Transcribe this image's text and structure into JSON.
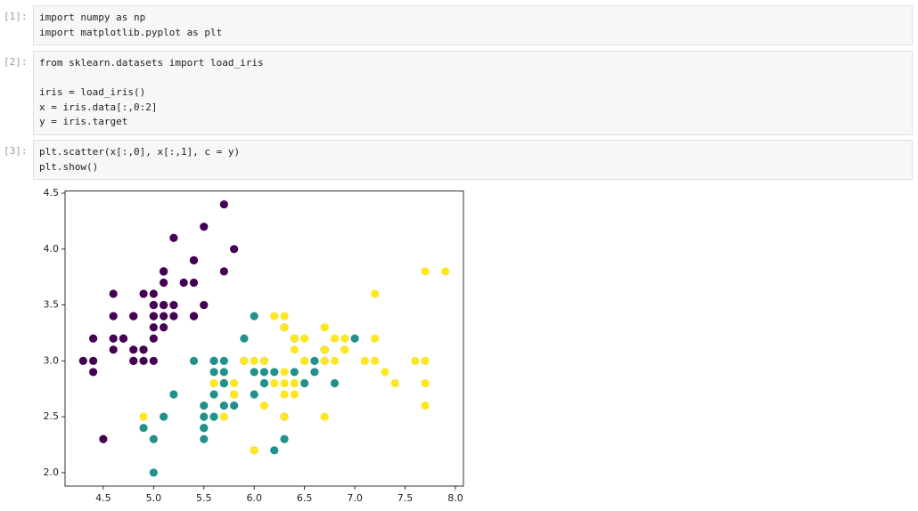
{
  "cells": [
    {
      "prompt": "[1]:",
      "blocks": [
        [
          "import numpy as np",
          "import matplotlib.pyplot as plt"
        ]
      ]
    },
    {
      "prompt": "[2]:",
      "blocks": [
        [
          "from sklearn.datasets import load_iris"
        ],
        [
          "iris = load_iris()",
          "x = iris.data[:,0:2]",
          "y = iris.target"
        ]
      ]
    },
    {
      "prompt": "[3]:",
      "blocks": [
        [
          "plt.scatter(x[:,0], x[:,1], c = y)",
          "plt.show()"
        ]
      ]
    }
  ],
  "chart_data": {
    "type": "scatter",
    "xlim": [
      4.12,
      8.08
    ],
    "ylim": [
      1.88,
      4.52
    ],
    "xticks": [
      4.5,
      {
        "value": 5.0,
        "label": "5.0"
      },
      5.5,
      {
        "value": 6.0,
        "label": "6.0"
      },
      6.5,
      {
        "value": 7.0,
        "label": "7.0"
      },
      7.5,
      {
        "value": 8.0,
        "label": "8.0"
      }
    ],
    "yticks": [
      {
        "value": 2.0,
        "label": "2.0"
      },
      2.5,
      {
        "value": 3.0,
        "label": "3.0"
      },
      3.5,
      {
        "value": 4.0,
        "label": "4.0"
      },
      4.5
    ],
    "series": [
      {
        "color": "#440154",
        "x": [
          5.1,
          4.9,
          4.7,
          4.6,
          5.0,
          5.4,
          4.6,
          5.0,
          4.4,
          4.9,
          5.4,
          4.8,
          4.8,
          4.3,
          5.8,
          5.7,
          5.4,
          5.1,
          5.7,
          5.1,
          5.4,
          5.1,
          4.6,
          5.1,
          4.8,
          5.0,
          5.0,
          5.2,
          5.2,
          4.7,
          4.8,
          5.4,
          5.2,
          5.5,
          4.9,
          5.0,
          5.5,
          4.9,
          4.4,
          5.1,
          5.0,
          4.5,
          4.4,
          5.0,
          5.1,
          4.8,
          5.1,
          4.6,
          5.3,
          5.0
        ],
        "y": [
          3.5,
          3.0,
          3.2,
          3.1,
          3.6,
          3.9,
          3.4,
          3.4,
          2.9,
          3.1,
          3.7,
          3.4,
          3.0,
          3.0,
          4.0,
          4.4,
          3.9,
          3.5,
          3.8,
          3.8,
          3.4,
          3.7,
          3.6,
          3.3,
          3.4,
          3.0,
          3.4,
          3.5,
          3.4,
          3.2,
          3.1,
          3.4,
          4.1,
          4.2,
          3.1,
          3.2,
          3.5,
          3.6,
          3.0,
          3.4,
          3.5,
          2.3,
          3.2,
          3.5,
          3.8,
          3.0,
          3.8,
          3.2,
          3.7,
          3.3
        ]
      },
      {
        "color": "#21918c",
        "x": [
          7.0,
          6.4,
          6.9,
          5.5,
          6.5,
          5.7,
          6.3,
          4.9,
          6.6,
          5.2,
          5.0,
          5.9,
          6.0,
          6.1,
          5.6,
          6.7,
          5.6,
          5.8,
          6.2,
          5.6,
          5.9,
          6.1,
          6.3,
          6.1,
          6.4,
          6.6,
          6.8,
          6.7,
          6.0,
          5.7,
          5.5,
          5.5,
          5.8,
          6.0,
          5.4,
          6.0,
          6.7,
          6.3,
          5.6,
          5.5,
          5.5,
          6.1,
          5.8,
          5.0,
          5.6,
          5.7,
          5.7,
          6.2,
          5.1,
          5.7
        ],
        "y": [
          3.2,
          3.2,
          3.1,
          2.3,
          2.8,
          2.8,
          3.3,
          2.4,
          2.9,
          2.7,
          2.0,
          3.0,
          2.2,
          2.9,
          2.9,
          3.1,
          3.0,
          2.7,
          2.2,
          2.5,
          3.2,
          2.8,
          2.5,
          2.8,
          2.9,
          3.0,
          2.8,
          3.0,
          2.9,
          2.6,
          2.4,
          2.4,
          2.7,
          2.7,
          3.0,
          3.4,
          3.1,
          2.3,
          3.0,
          2.5,
          2.6,
          3.0,
          2.6,
          2.3,
          2.7,
          3.0,
          2.9,
          2.9,
          2.5,
          2.8
        ]
      },
      {
        "color": "#fde725",
        "x": [
          6.3,
          5.8,
          7.1,
          6.3,
          6.5,
          7.6,
          4.9,
          7.3,
          6.7,
          7.2,
          6.5,
          6.4,
          6.8,
          5.7,
          5.8,
          6.4,
          6.5,
          7.7,
          7.7,
          6.0,
          6.9,
          5.6,
          7.7,
          6.3,
          6.7,
          7.2,
          6.2,
          6.1,
          6.4,
          7.2,
          7.4,
          7.9,
          6.4,
          6.3,
          6.1,
          7.7,
          6.3,
          6.4,
          6.0,
          6.9,
          6.7,
          6.9,
          5.8,
          6.8,
          6.7,
          6.7,
          6.3,
          6.5,
          6.2,
          5.9
        ],
        "y": [
          3.3,
          2.7,
          3.0,
          2.9,
          3.0,
          3.0,
          2.5,
          2.9,
          2.5,
          3.6,
          3.2,
          2.7,
          3.0,
          2.5,
          2.8,
          3.2,
          3.0,
          3.8,
          2.6,
          2.2,
          3.2,
          2.8,
          2.8,
          2.7,
          3.3,
          3.2,
          2.8,
          3.0,
          2.8,
          3.0,
          2.8,
          3.8,
          2.8,
          2.8,
          2.6,
          3.0,
          3.4,
          3.1,
          3.0,
          3.1,
          3.1,
          3.1,
          2.7,
          3.2,
          3.3,
          3.0,
          2.5,
          3.0,
          3.4,
          3.0
        ]
      }
    ]
  }
}
